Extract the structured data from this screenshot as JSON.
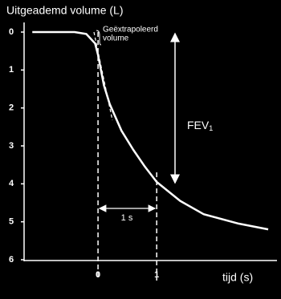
{
  "chart_data": {
    "type": "line",
    "title": "Uitgeademd volume (L)",
    "x_label": "tijd (s)",
    "x": [
      -1.12,
      -0.4,
      -0.2,
      -0.05,
      0,
      0.05,
      0.1,
      0.2,
      0.4,
      0.6,
      0.8,
      1.0,
      1.4,
      1.8,
      2.4,
      2.9
    ],
    "series": [
      {
        "color": "#ffffff",
        "values": [
          0,
          0,
          0.05,
          0.3,
          0.6,
          1.0,
          1.4,
          1.9,
          2.6,
          3.1,
          3.55,
          3.95,
          4.45,
          4.8,
          5.05,
          5.2
        ]
      }
    ],
    "xlim": [
      -1.26,
      3.05
    ],
    "ylim": [
      0,
      6
    ],
    "y_inverted": true,
    "xticks": [
      0,
      1
    ],
    "yticks": [
      0,
      1,
      2,
      3,
      4,
      5,
      6
    ],
    "annotations": {
      "extrapolated": [
        "Geëxtrapoleerd",
        "volume"
      ],
      "interval": "1 s",
      "fev": {
        "text": "FEV",
        "sub": "1"
      }
    }
  }
}
